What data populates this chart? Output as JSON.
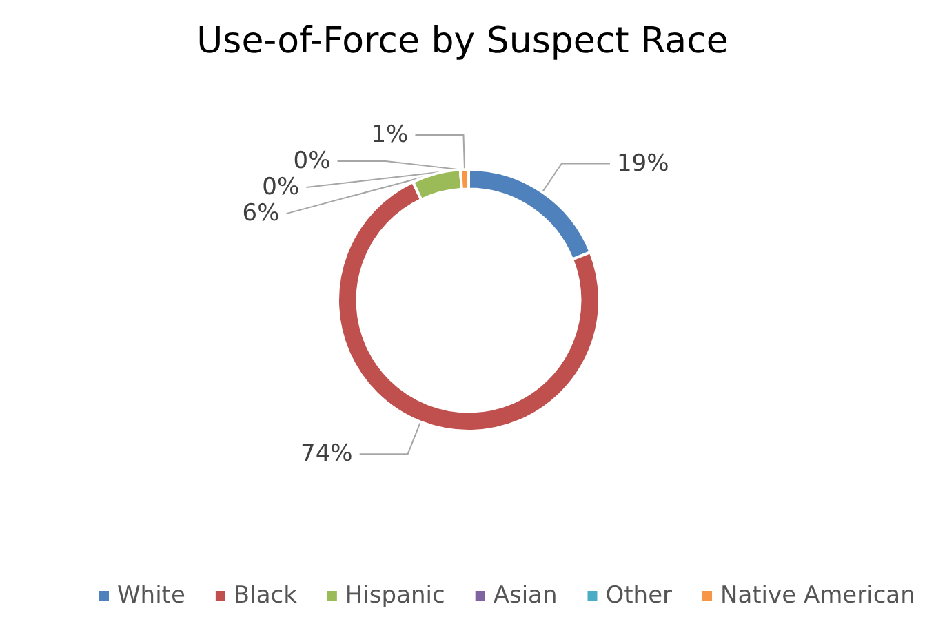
{
  "chart_data": {
    "type": "donut",
    "title": "Use-of-Force by Suspect Race",
    "categories": [
      "White",
      "Black",
      "Hispanic",
      "Asian",
      "Other",
      "Native American"
    ],
    "values": [
      19,
      74,
      6,
      0,
      0,
      1
    ],
    "value_labels": [
      "19%",
      "74%",
      "6%",
      "0%",
      "0%",
      "1%"
    ],
    "colors": [
      "#4f81bd",
      "#c0504d",
      "#9bbb59",
      "#8064a2",
      "#4bacc6",
      "#f79646"
    ],
    "legend": "bottom"
  }
}
